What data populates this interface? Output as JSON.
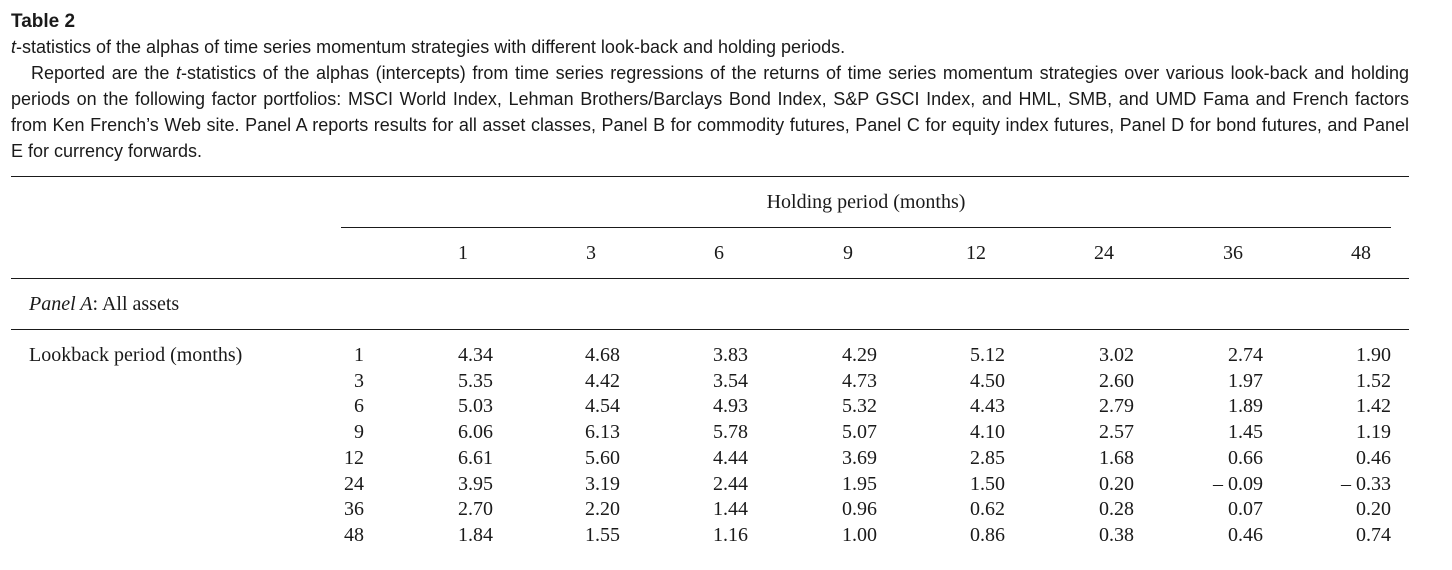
{
  "table": {
    "label": "Table 2",
    "title_italic": "t",
    "title_rest": "-statistics of the alphas of time series momentum strategies with different look-back and holding periods.",
    "body_p1": "Reported are the ",
    "body_italic": "t",
    "body_p2": "-statistics of the alphas (intercepts) from time series regressions of the returns of time series momentum strategies over various look-back and holding periods on the following factor portfolios: MSCI World Index, Lehman Brothers/Barclays Bond Index, S&P GSCI Index, and HML, SMB, and UMD Fama and French factors from Ken French’s Web site. Panel A reports results for all asset classes, Panel B for commodity futures, Panel C for equity index futures, Panel D for bond futures, and Panel E for currency forwards.",
    "holding_header": "Holding period (months)",
    "holding_periods": [
      "1",
      "3",
      "6",
      "9",
      "12",
      "24",
      "36",
      "48"
    ],
    "panel_italic": "Panel A",
    "panel_rest": ": All assets",
    "lookback_label": "Lookback period (months)",
    "lookback_periods": [
      "1",
      "3",
      "6",
      "9",
      "12",
      "24",
      "36",
      "48"
    ],
    "rows": [
      [
        "4.34",
        "4.68",
        "3.83",
        "4.29",
        "5.12",
        "3.02",
        "2.74",
        "1.90"
      ],
      [
        "5.35",
        "4.42",
        "3.54",
        "4.73",
        "4.50",
        "2.60",
        "1.97",
        "1.52"
      ],
      [
        "5.03",
        "4.54",
        "4.93",
        "5.32",
        "4.43",
        "2.79",
        "1.89",
        "1.42"
      ],
      [
        "6.06",
        "6.13",
        "5.78",
        "5.07",
        "4.10",
        "2.57",
        "1.45",
        "1.19"
      ],
      [
        "6.61",
        "5.60",
        "4.44",
        "3.69",
        "2.85",
        "1.68",
        "0.66",
        "0.46"
      ],
      [
        "3.95",
        "3.19",
        "2.44",
        "1.95",
        "1.50",
        "0.20",
        "– 0.09",
        "– 0.33"
      ],
      [
        "2.70",
        "2.20",
        "1.44",
        "0.96",
        "0.62",
        "0.28",
        "0.07",
        "0.20"
      ],
      [
        "1.84",
        "1.55",
        "1.16",
        "1.00",
        "0.86",
        "0.38",
        "0.46",
        "0.74"
      ]
    ]
  }
}
